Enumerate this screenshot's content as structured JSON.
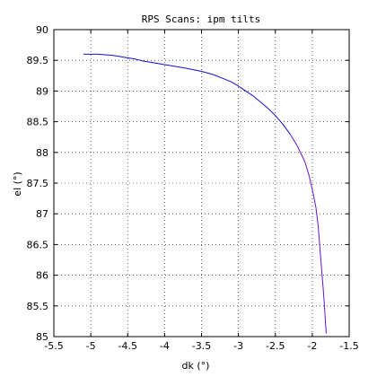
{
  "chart_data": {
    "type": "line",
    "title": "RPS Scans: ipm tilts",
    "xlabel": "dk (°)",
    "ylabel": "el (°)",
    "xlim": [
      -5.5,
      -1.5
    ],
    "ylim": [
      85,
      90
    ],
    "xticks": [
      -5.5,
      -5,
      -4.5,
      -4,
      -3.5,
      -3,
      -2.5,
      -2,
      -1.5
    ],
    "xtick_labels": [
      "-5.5",
      "-5",
      "-4.5",
      "-4",
      "-3.5",
      "-3",
      "-2.5",
      "-2",
      "-1.5"
    ],
    "yticks": [
      85,
      85.5,
      86,
      86.5,
      87,
      87.5,
      88,
      88.5,
      89,
      89.5,
      90
    ],
    "ytick_labels": [
      "85",
      "85.5",
      "86",
      "86.5",
      "87",
      "87.5",
      "88",
      "88.5",
      "89",
      "89.5",
      "90"
    ],
    "grid": true,
    "series": [
      {
        "color": "#1010cc",
        "x": [
          -5.1,
          -4.9,
          -4.7,
          -4.55,
          -4.4,
          -4.3,
          -4.1,
          -3.9,
          -3.7,
          -3.5,
          -3.35,
          -3.2,
          -3.1,
          -3.0,
          -2.9,
          -2.8,
          -2.7,
          -2.6,
          -2.5,
          -2.4,
          -2.3
        ],
        "y": [
          89.6,
          89.6,
          89.58,
          89.55,
          89.52,
          89.49,
          89.45,
          89.41,
          89.37,
          89.32,
          89.27,
          89.2,
          89.15,
          89.08,
          89.0,
          88.92,
          88.82,
          88.72,
          88.6,
          88.46,
          88.3
        ]
      },
      {
        "color": "#6a12cc",
        "x": [
          -2.3,
          -2.2,
          -2.1,
          -2.05,
          -2.0,
          -1.95,
          -1.92,
          -1.9,
          -1.88,
          -1.86,
          -1.84,
          -1.83,
          -1.82,
          -1.81
        ],
        "y": [
          88.3,
          88.1,
          87.85,
          87.65,
          87.4,
          87.1,
          86.8,
          86.5,
          86.2,
          85.9,
          85.6,
          85.4,
          85.2,
          85.05
        ]
      }
    ]
  }
}
